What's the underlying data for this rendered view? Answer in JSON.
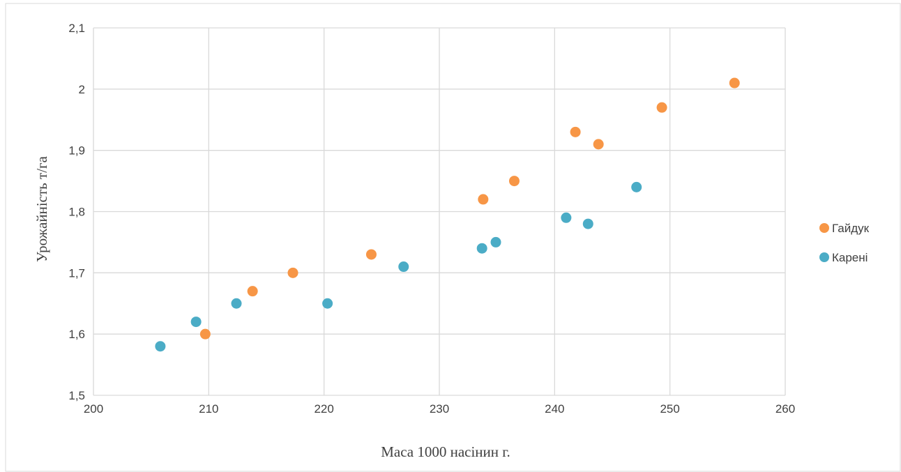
{
  "caption_text": "",
  "chart_data": {
    "type": "scatter",
    "xlabel": "Маса 1000 насінин г.",
    "ylabel": "Урожайність т/га",
    "xlim": [
      200,
      260
    ],
    "ylim": [
      1.5,
      2.1
    ],
    "x_ticks": [
      "200",
      "210",
      "220",
      "230",
      "240",
      "250",
      "260"
    ],
    "y_ticks": [
      "1,5",
      "1,6",
      "1,7",
      "1,8",
      "1,9",
      "2",
      "2,1"
    ],
    "grid": true,
    "legend_position": "right",
    "series": [
      {
        "name": "Гайдук",
        "color": "#F79646",
        "points": [
          {
            "x": 209.7,
            "y": 1.6
          },
          {
            "x": 213.8,
            "y": 1.67
          },
          {
            "x": 217.3,
            "y": 1.7
          },
          {
            "x": 224.1,
            "y": 1.73
          },
          {
            "x": 233.8,
            "y": 1.82
          },
          {
            "x": 236.5,
            "y": 1.85
          },
          {
            "x": 241.8,
            "y": 1.93
          },
          {
            "x": 243.8,
            "y": 1.91
          },
          {
            "x": 249.3,
            "y": 1.97
          },
          {
            "x": 255.6,
            "y": 2.01
          }
        ]
      },
      {
        "name": "Карені",
        "color": "#4BACC6",
        "points": [
          {
            "x": 205.8,
            "y": 1.58
          },
          {
            "x": 208.9,
            "y": 1.62
          },
          {
            "x": 212.4,
            "y": 1.65
          },
          {
            "x": 220.3,
            "y": 1.65
          },
          {
            "x": 226.9,
            "y": 1.71
          },
          {
            "x": 233.7,
            "y": 1.74
          },
          {
            "x": 234.9,
            "y": 1.75
          },
          {
            "x": 241.0,
            "y": 1.79
          },
          {
            "x": 242.9,
            "y": 1.78
          },
          {
            "x": 247.1,
            "y": 1.84
          }
        ]
      }
    ]
  }
}
